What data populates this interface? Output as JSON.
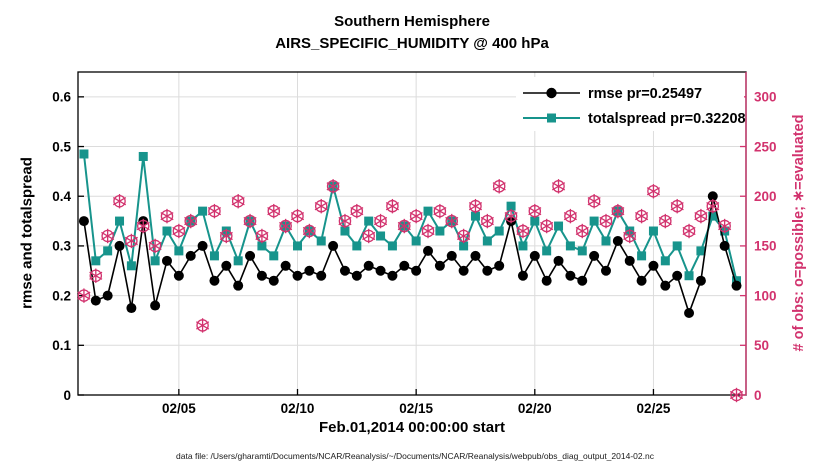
{
  "chart_data": {
    "type": "line",
    "title_line1": "Southern Hemisphere",
    "title_line2": "AIRS_SPECIFIC_HUMIDITY @ 400 hPa",
    "xlabel": "Feb.01,2014 00:00:00 start",
    "ylabel_left": "rmse and totalspread",
    "ylabel_right": "# of obs: o=possible; ∗=evaluated",
    "xlim_days": [
      0.75,
      28.9
    ],
    "ylim_left": [
      0,
      0.65
    ],
    "ylim_right": [
      0,
      325
    ],
    "x_ticks": [
      {
        "day": 5,
        "label": "02/05"
      },
      {
        "day": 10,
        "label": "02/10"
      },
      {
        "day": 15,
        "label": "02/15"
      },
      {
        "day": 20,
        "label": "02/20"
      },
      {
        "day": 25,
        "label": "02/25"
      }
    ],
    "y_ticks_left": [
      0,
      0.1,
      0.2,
      0.3,
      0.4,
      0.5,
      0.6
    ],
    "y_ticks_right": [
      0,
      50,
      100,
      150,
      200,
      250,
      300
    ],
    "rmse_pr": 0.25497,
    "totalspread_pr": 0.32208,
    "x_days": [
      1,
      1.5,
      2,
      2.5,
      3,
      3.5,
      4,
      4.5,
      5,
      5.5,
      6,
      6.5,
      7,
      7.5,
      8,
      8.5,
      9,
      9.5,
      10,
      10.5,
      11,
      11.5,
      12,
      12.5,
      13,
      13.5,
      14,
      14.5,
      15,
      15.5,
      16,
      16.5,
      17,
      17.5,
      18,
      18.5,
      19,
      19.5,
      20,
      20.5,
      21,
      21.5,
      22,
      22.5,
      23,
      23.5,
      24,
      24.5,
      25,
      25.5,
      26,
      26.5,
      27,
      27.5,
      28,
      28.5
    ],
    "series": [
      {
        "name": "rmse",
        "axis": "left",
        "color": "#000000",
        "marker": "filled-circle",
        "values": [
          0.35,
          0.19,
          0.2,
          0.3,
          0.175,
          0.35,
          0.18,
          0.27,
          0.24,
          0.28,
          0.3,
          0.23,
          0.26,
          0.22,
          0.28,
          0.24,
          0.23,
          0.26,
          0.24,
          0.25,
          0.24,
          0.3,
          0.25,
          0.24,
          0.26,
          0.25,
          0.24,
          0.26,
          0.25,
          0.29,
          0.26,
          0.28,
          0.25,
          0.28,
          0.25,
          0.26,
          0.35,
          0.24,
          0.28,
          0.23,
          0.27,
          0.24,
          0.23,
          0.28,
          0.25,
          0.31,
          0.27,
          0.23,
          0.26,
          0.22,
          0.24,
          0.165,
          0.23,
          0.4,
          0.3,
          0.22
        ]
      },
      {
        "name": "totalspread",
        "axis": "left",
        "color": "#17948c",
        "marker": "filled-square",
        "values": [
          0.485,
          0.27,
          0.29,
          0.35,
          0.26,
          0.48,
          0.27,
          0.33,
          0.29,
          0.35,
          0.37,
          0.28,
          0.33,
          0.27,
          0.35,
          0.3,
          0.28,
          0.34,
          0.3,
          0.33,
          0.31,
          0.42,
          0.33,
          0.3,
          0.35,
          0.32,
          0.3,
          0.34,
          0.31,
          0.37,
          0.33,
          0.35,
          0.3,
          0.36,
          0.31,
          0.33,
          0.38,
          0.3,
          0.35,
          0.29,
          0.34,
          0.3,
          0.29,
          0.35,
          0.31,
          0.37,
          0.33,
          0.28,
          0.33,
          0.27,
          0.3,
          0.24,
          0.29,
          0.36,
          0.33,
          0.23
        ]
      },
      {
        "name": "obs-possible",
        "axis": "right",
        "color": "#d2336e",
        "marker": "open-circle",
        "values": [
          100,
          120,
          160,
          195,
          155,
          170,
          150,
          180,
          165,
          175,
          70,
          185,
          160,
          195,
          175,
          160,
          185,
          170,
          180,
          165,
          190,
          210,
          175,
          185,
          160,
          175,
          190,
          170,
          180,
          165,
          185,
          175,
          160,
          190,
          175,
          210,
          180,
          165,
          185,
          170,
          210,
          180,
          165,
          195,
          175,
          185,
          160,
          180,
          205,
          175,
          190,
          165,
          180,
          190,
          170,
          0
        ]
      },
      {
        "name": "obs-evaluated",
        "axis": "right",
        "color": "#d2336e",
        "marker": "asterisk",
        "values": [
          100,
          120,
          160,
          195,
          155,
          170,
          150,
          180,
          165,
          175,
          70,
          185,
          160,
          195,
          175,
          160,
          185,
          170,
          180,
          165,
          190,
          210,
          175,
          185,
          160,
          175,
          190,
          170,
          180,
          165,
          185,
          175,
          160,
          190,
          175,
          210,
          180,
          165,
          185,
          170,
          210,
          180,
          165,
          195,
          175,
          185,
          160,
          180,
          205,
          175,
          190,
          165,
          180,
          190,
          170,
          0
        ]
      }
    ],
    "legend": [
      {
        "label": "rmse pr=0.25497",
        "series": "rmse"
      },
      {
        "label": "totalspread pr=0.32208",
        "series": "totalspread"
      }
    ]
  },
  "colors": {
    "grid": "#dcdcdc",
    "axis": "#000000",
    "right_axis": "#d2336e",
    "teal": "#17948c",
    "background": "#ffffff"
  },
  "caption": {
    "text": "data file: /Users/gharamti/Documents/NCAR/Reanalysis/~/Documents/NCAR/Reanalysis/webpub/obs_diag_output_2014-02.nc"
  }
}
